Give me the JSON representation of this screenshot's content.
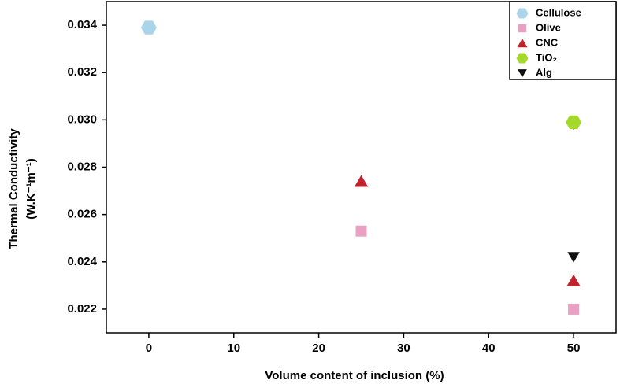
{
  "chart_data": {
    "type": "scatter",
    "x_label": "Volume content of inclusion (%)",
    "y_label": [
      "Thermal Conductivity",
      "(W.K⁻¹m⁻¹)"
    ],
    "xlim": [
      -5,
      55
    ],
    "xticks": [
      0,
      10,
      20,
      30,
      40,
      50
    ],
    "ylim": [
      0.021,
      0.035
    ],
    "yticks": [
      {
        "value": 0.022,
        "label": "0.022"
      },
      {
        "value": 0.024,
        "label": "0.024"
      },
      {
        "value": 0.026,
        "label": "0.026"
      },
      {
        "value": 0.028,
        "label": "0.028"
      },
      {
        "value": 0.03,
        "label": "0.030"
      },
      {
        "value": 0.032,
        "label": "0.032"
      },
      {
        "value": 0.034,
        "label": "0.034"
      }
    ],
    "legend": "top-right",
    "series": [
      {
        "name": "Cellulose",
        "color": "#a9d4ea",
        "marker": "hexagon",
        "x": [
          0
        ],
        "values": [
          0.0339
        ]
      },
      {
        "name": "Olive",
        "color": "#e9a1c3",
        "marker": "square",
        "x": [
          25,
          50
        ],
        "values": [
          0.0253,
          0.022
        ]
      },
      {
        "name": "CNC",
        "color": "#c0232e",
        "marker": "triangle-up",
        "x": [
          25,
          50
        ],
        "values": [
          0.0274,
          0.0232
        ]
      },
      {
        "name": "Alg",
        "color": "#111111",
        "marker": "triangle-down",
        "x": [
          50,
          50
        ],
        "values": [
          0.0298,
          0.0242
        ]
      },
      {
        "name": "TiO₂",
        "color": "#a4d82a",
        "marker": "hexagon",
        "x": [
          50
        ],
        "values": [
          0.0299
        ]
      }
    ]
  }
}
